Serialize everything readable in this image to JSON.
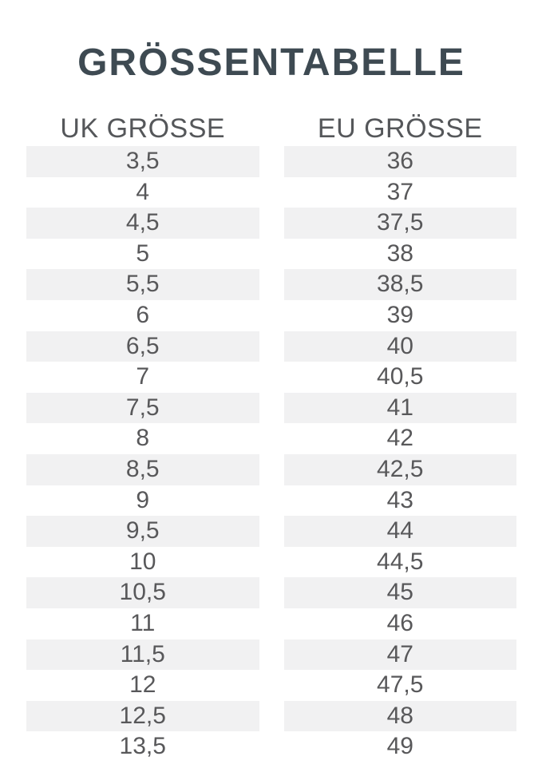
{
  "title": "GRÖSSENTABELLE",
  "chart_data": {
    "type": "table",
    "title": "GRÖSSENTABELLE",
    "columns": [
      "UK GRÖSSE",
      "EU GRÖSSE"
    ],
    "rows": [
      [
        "3,5",
        "36"
      ],
      [
        "4",
        "37"
      ],
      [
        "4,5",
        "37,5"
      ],
      [
        "5",
        "38"
      ],
      [
        "5,5",
        "38,5"
      ],
      [
        "6",
        "39"
      ],
      [
        "6,5",
        "40"
      ],
      [
        "7",
        "40,5"
      ],
      [
        "7,5",
        "41"
      ],
      [
        "8",
        "42"
      ],
      [
        "8,5",
        "42,5"
      ],
      [
        "9",
        "43"
      ],
      [
        "9,5",
        "44"
      ],
      [
        "10",
        "44,5"
      ],
      [
        "10,5",
        "45"
      ],
      [
        "11",
        "46"
      ],
      [
        "11,5",
        "47"
      ],
      [
        "12",
        "47,5"
      ],
      [
        "12,5",
        "48"
      ],
      [
        "13,5",
        "49"
      ]
    ],
    "layout_hints": {
      "striped_rows": "odd",
      "first_row_striped": true,
      "column_alignment": "center"
    }
  },
  "colors": {
    "background": "#ffffff",
    "title_text": "#3e4a52",
    "header_text": "#55575a",
    "cell_text": "#58585a",
    "row_stripe": "#f1f1f2"
  }
}
